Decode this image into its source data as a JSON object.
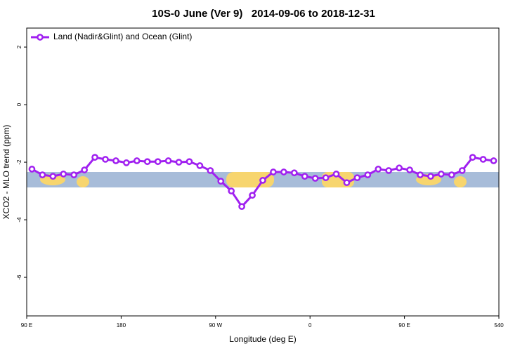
{
  "chart_data": {
    "type": "line",
    "title": "10S-0 June (Ver 9)   2014-09-06 to 2018-12-31",
    "x_label": "Longitude (deg E)",
    "y_label": "XCO2 - MLO trend (ppm)",
    "x": [
      95,
      105,
      115,
      125,
      135,
      145,
      155,
      165,
      175,
      185,
      195,
      205,
      215,
      225,
      235,
      245,
      255,
      265,
      275,
      285,
      295,
      305,
      315,
      325,
      335,
      345,
      355,
      365,
      375,
      385,
      395,
      405,
      415,
      425,
      435,
      445,
      455,
      465,
      475,
      485,
      495,
      505,
      515,
      525,
      535
    ],
    "series": [
      {
        "name": "Land (Nadir&Glint) and Ocean (Glint)",
        "color": "#a020f0",
        "values": [
          -2.24,
          -2.44,
          -2.49,
          -2.41,
          -2.44,
          -2.27,
          -1.83,
          -1.9,
          -1.95,
          -2.02,
          -1.95,
          -1.98,
          -1.98,
          -1.95,
          -2.0,
          -1.98,
          -2.12,
          -2.29,
          -2.66,
          -3.0,
          -3.54,
          -3.15,
          -2.63,
          -2.34,
          -2.34,
          -2.37,
          -2.49,
          -2.56,
          -2.54,
          -2.41,
          -2.71,
          -2.54,
          -2.44,
          -2.24,
          -2.29,
          -2.2,
          -2.27,
          -2.44,
          -2.49,
          -2.41,
          -2.44,
          -2.29,
          -1.83,
          -1.9,
          -1.95
        ]
      }
    ],
    "xlim": [
      90,
      540
    ],
    "xticks": [
      {
        "value": 90,
        "label": "90 E"
      },
      180,
      {
        "value": 270,
        "label": "90 W"
      },
      {
        "value": 360,
        "label": "0"
      },
      {
        "value": 450,
        "label": "90 E"
      },
      540
    ],
    "ylim": [
      -7.34,
      2.66
    ],
    "yticks": [
      2,
      0,
      -2,
      -4,
      -6
    ],
    "legend": "top-left"
  }
}
